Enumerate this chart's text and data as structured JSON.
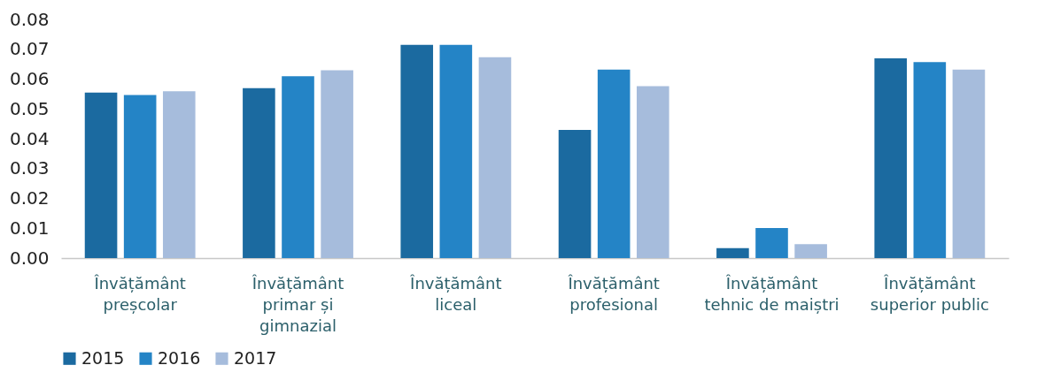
{
  "chart_data": {
    "type": "bar",
    "categories": [
      "Învățământ preșcolar",
      "Învățământ primar și gimnazial",
      "Învățământ liceal",
      "Învățământ profesional",
      "Învățământ tehnic de maiștri",
      "Învățământ superior public"
    ],
    "series": [
      {
        "name": "2015",
        "color": "#1b6aa0",
        "values": [
          0.0555,
          0.057,
          0.0715,
          0.043,
          0.0033,
          0.067
        ]
      },
      {
        "name": "2016",
        "color": "#2484c6",
        "values": [
          0.0547,
          0.061,
          0.0715,
          0.0632,
          0.0101,
          0.0657
        ]
      },
      {
        "name": "2017",
        "color": "#a6bcdc",
        "values": [
          0.0559,
          0.063,
          0.0673,
          0.0576,
          0.0047,
          0.0632
        ]
      }
    ],
    "ylim": [
      0,
      0.08
    ],
    "yticks": [
      {
        "value": 0,
        "label": "0.00"
      },
      {
        "value": 0.01,
        "label": "0.01"
      },
      {
        "value": 0.02,
        "label": "0.02"
      },
      {
        "value": 0.03,
        "label": "0.03"
      },
      {
        "value": 0.04,
        "label": "0.04"
      },
      {
        "value": 0.05,
        "label": "0.05"
      },
      {
        "value": 0.06,
        "label": "0.06"
      },
      {
        "value": 0.07,
        "label": "0.07"
      },
      {
        "value": 0.08,
        "label": "0.08"
      }
    ],
    "grid": false,
    "legend": "bottom"
  }
}
